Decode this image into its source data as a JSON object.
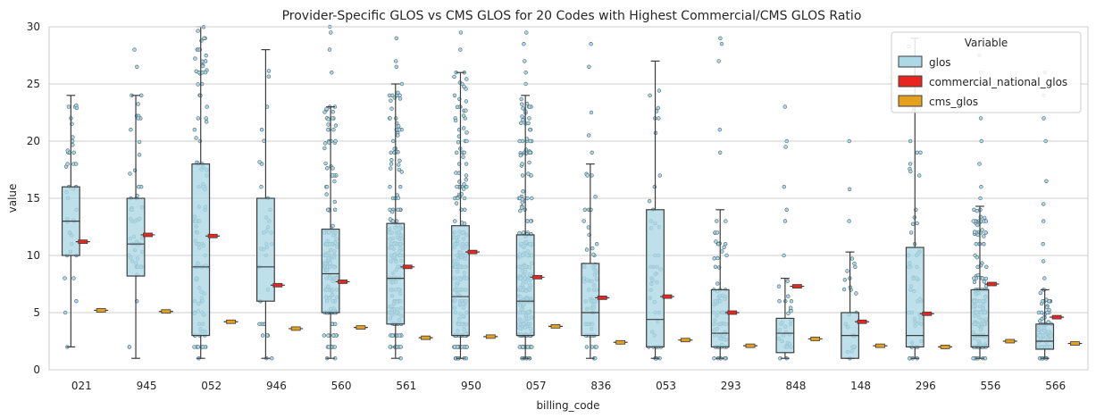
{
  "chart_data": {
    "type": "box",
    "title": "Provider-Specific GLOS vs CMS GLOS for 20 Codes with Highest Commercial/CMS GLOS Ratio",
    "xlabel": "billing_code",
    "ylabel": "value",
    "ylim": [
      0,
      30
    ],
    "yticks": [
      0,
      5,
      10,
      15,
      20,
      25,
      30
    ],
    "grid": "horizontal",
    "categories": [
      "021",
      "945",
      "052",
      "946",
      "560",
      "561",
      "950",
      "057",
      "836",
      "053",
      "293",
      "848",
      "148",
      "296",
      "556",
      "566"
    ],
    "legend": {
      "title": "Variable",
      "position": "top-right",
      "entries": [
        "glos",
        "commercial_national_glos",
        "cms_glos"
      ]
    },
    "colors": {
      "glos": "#add8e6",
      "commercial_national_glos": "#e8261f",
      "cms_glos": "#e5a11c",
      "edge": "#3d3d3d",
      "grid": "#cccccc"
    },
    "glos_boxes": [
      {
        "code": "021",
        "whisker_low": 2,
        "q1": 10,
        "median": 13,
        "q3": 16,
        "whisker_high": 24,
        "points": 40
      },
      {
        "code": "945",
        "whisker_low": 1,
        "q1": 8.2,
        "median": 11,
        "q3": 15,
        "whisker_high": 24,
        "points": 50,
        "outliers": [
          26.5,
          28
        ]
      },
      {
        "code": "052",
        "whisker_low": 1,
        "q1": 3,
        "median": 9,
        "q3": 18,
        "whisker_high": 30,
        "points": 110
      },
      {
        "code": "946",
        "whisker_low": 1,
        "q1": 6,
        "median": 9,
        "q3": 15,
        "whisker_high": 28,
        "points": 35
      },
      {
        "code": "560",
        "whisker_low": 1,
        "q1": 5,
        "median": 8.4,
        "q3": 12.3,
        "whisker_high": 23,
        "points": 170,
        "outliers": [
          26,
          28,
          29.5,
          30
        ]
      },
      {
        "code": "561",
        "whisker_low": 1,
        "q1": 4,
        "median": 8,
        "q3": 12.8,
        "whisker_high": 25,
        "points": 190,
        "outliers": [
          26.5,
          27,
          29
        ]
      },
      {
        "code": "950",
        "whisker_low": 1,
        "q1": 3,
        "median": 6.4,
        "q3": 12.6,
        "whisker_high": 26,
        "points": 230,
        "outliers": [
          28,
          29.5
        ]
      },
      {
        "code": "057",
        "whisker_low": 1,
        "q1": 3,
        "median": 6,
        "q3": 11.8,
        "whisker_high": 24,
        "points": 260,
        "outliers": [
          25,
          26,
          27,
          28.5,
          29.5
        ]
      },
      {
        "code": "836",
        "whisker_low": 1,
        "q1": 3,
        "median": 5,
        "q3": 9.3,
        "whisker_high": 18,
        "points": 70,
        "outliers": [
          19,
          20.5,
          22.5,
          26.5,
          28.5
        ]
      },
      {
        "code": "053",
        "whisker_low": 1,
        "q1": 2,
        "median": 4.4,
        "q3": 14,
        "whisker_high": 27,
        "points": 45
      },
      {
        "code": "293",
        "whisker_low": 1,
        "q1": 2,
        "median": 3.2,
        "q3": 7,
        "whisker_high": 14,
        "points": 80,
        "outliers": [
          19,
          21,
          27,
          28.5,
          29
        ]
      },
      {
        "code": "848",
        "whisker_low": 1,
        "q1": 1.5,
        "median": 3.2,
        "q3": 4.5,
        "whisker_high": 8,
        "points": 30,
        "outliers": [
          10,
          13,
          14,
          16,
          19.5,
          20,
          23
        ]
      },
      {
        "code": "148",
        "whisker_low": 1,
        "q1": 1,
        "median": 3,
        "q3": 5,
        "whisker_high": 10.3,
        "points": 25,
        "outliers": [
          13,
          15.8,
          20
        ]
      },
      {
        "code": "296",
        "whisker_low": 1,
        "q1": 2,
        "median": 3,
        "q3": 10.7,
        "whisker_high": 29,
        "points": 55
      },
      {
        "code": "556",
        "whisker_low": 1,
        "q1": 2,
        "median": 3,
        "q3": 7,
        "whisker_high": 14.3,
        "points": 170,
        "outliers": [
          15,
          16,
          18,
          20,
          22,
          25,
          26,
          27.5
        ]
      },
      {
        "code": "566",
        "whisker_low": 1,
        "q1": 1.8,
        "median": 2.5,
        "q3": 4,
        "whisker_high": 7,
        "points": 90,
        "outliers": [
          8,
          9.5,
          11,
          13,
          14.5,
          16.5,
          20,
          22,
          24,
          26
        ]
      }
    ],
    "commercial_national_glos": [
      11.2,
      11.8,
      11.7,
      7.4,
      7.7,
      9.0,
      10.3,
      8.1,
      6.3,
      6.4,
      5.0,
      7.3,
      4.2,
      4.9,
      7.5,
      4.6
    ],
    "cms_glos": [
      5.2,
      5.1,
      4.2,
      3.6,
      3.7,
      2.8,
      2.9,
      3.8,
      2.4,
      2.6,
      2.1,
      2.7,
      2.1,
      2.0,
      2.5,
      2.3
    ]
  }
}
